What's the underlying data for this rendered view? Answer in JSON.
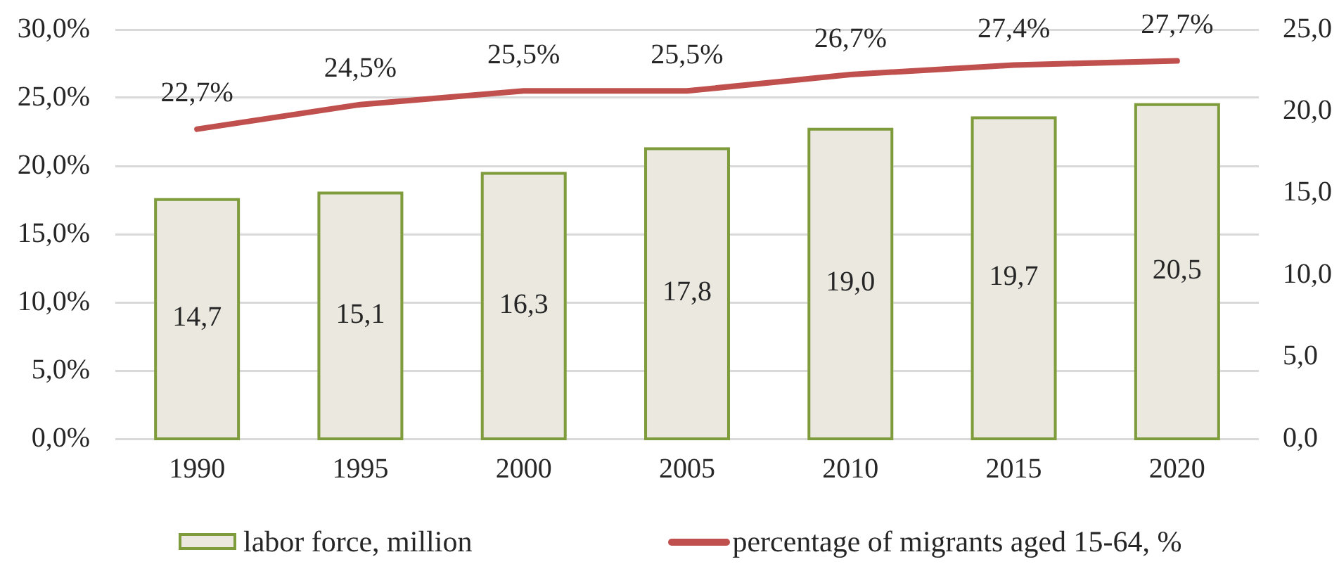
{
  "chart_data": {
    "type": "bar",
    "categories": [
      "1990",
      "1995",
      "2000",
      "2005",
      "2010",
      "2015",
      "2020"
    ],
    "series": [
      {
        "name": "labor force, million",
        "axis": "y2",
        "color": "#ebe8e0",
        "values": [
          14.7,
          15.1,
          16.3,
          17.8,
          19.0,
          19.7,
          20.5
        ],
        "value_labels": [
          "14,7",
          "15,1",
          "16,3",
          "17,8",
          "19,0",
          "19,7",
          "20,5"
        ]
      },
      {
        "name": "percentage of migrants aged 15-64, %",
        "type": "line",
        "color": "#c0504d",
        "values": [
          22.7,
          24.5,
          25.5,
          25.5,
          26.7,
          27.4,
          27.7
        ],
        "value_labels": [
          "22,7%",
          "24,5%",
          "25,5%",
          "25,5%",
          "26,7%",
          "27,4%",
          "27,7%"
        ]
      }
    ],
    "ylim": [
      0,
      30
    ],
    "yticks": [
      {
        "value": 0,
        "label": "0,0%"
      },
      {
        "value": 5,
        "label": "5,0%"
      },
      {
        "value": 10,
        "label": "10,0%"
      },
      {
        "value": 15,
        "label": "15,0%"
      },
      {
        "value": 20,
        "label": "20,0%"
      },
      {
        "value": 25,
        "label": "25,0%"
      },
      {
        "value": 30,
        "label": "30,0%"
      }
    ],
    "y2lim": [
      0,
      25
    ],
    "y2ticks": [
      {
        "value": 0,
        "label": "0,0"
      },
      {
        "value": 5,
        "label": "5,0"
      },
      {
        "value": 10,
        "label": "10,0"
      },
      {
        "value": 15,
        "label": "15,0"
      },
      {
        "value": 20,
        "label": "20,0"
      },
      {
        "value": 25,
        "label": "25,0"
      }
    ],
    "grid": "y",
    "legend": "bottom",
    "marker": "none"
  }
}
